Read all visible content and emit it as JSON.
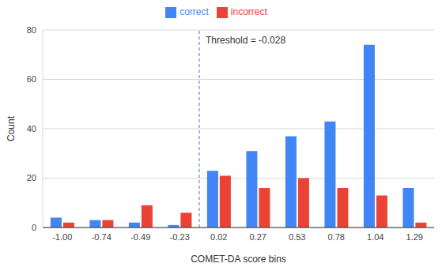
{
  "chart_data": {
    "type": "bar",
    "x_label": "COMET-DA score bins",
    "y_label": "Count",
    "categories": [
      "-1.00",
      "-0.74",
      "-0.49",
      "-0.23",
      "0.02",
      "0.27",
      "0.53",
      "0.78",
      "1.04",
      "1.29"
    ],
    "series": [
      {
        "name": "correct",
        "color": "#4285f4",
        "values": [
          4,
          3,
          2,
          1,
          23,
          31,
          37,
          43,
          74,
          16
        ]
      },
      {
        "name": "incorrect",
        "color": "#ea4335",
        "values": [
          2,
          3,
          9,
          6,
          21,
          16,
          20,
          16,
          13,
          2
        ]
      }
    ],
    "ylim": [
      0,
      80
    ],
    "yticks": [
      0,
      20,
      40,
      60,
      80
    ],
    "grid": true,
    "legend": "top",
    "annotations": [
      {
        "text": "Threshold = -0.028",
        "x": -0.028,
        "line_style": "dashed"
      }
    ]
  }
}
